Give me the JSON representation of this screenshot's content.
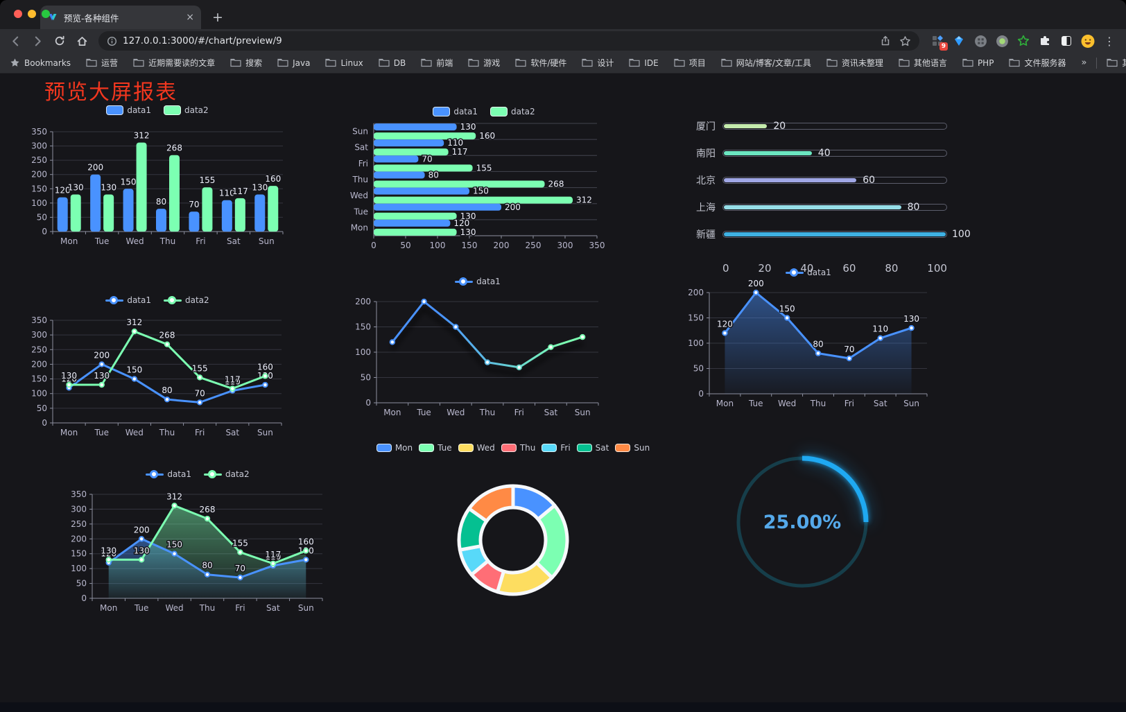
{
  "browser": {
    "tab_title": "预览-各种组件",
    "close_tab_glyph": "×",
    "new_tab_button": "+",
    "url": "127.0.0.1:3000/#/chart/preview/9",
    "extension_badge": "9",
    "menu_glyph": "⋮",
    "bookmarks_label": "Bookmarks",
    "bookmarks": [
      "运营",
      "近期需要读的文章",
      "搜索",
      "Java",
      "Linux",
      "DB",
      "前端",
      "游戏",
      "软件/硬件",
      "设计",
      "IDE",
      "项目",
      "网站/博客/文章/工具",
      "资讯未整理",
      "其他语言",
      "PHP",
      "文件服务器"
    ],
    "bookmarks_overflow": "»",
    "other_bookmarks": "其他书签"
  },
  "page": {
    "title": "预览大屏报表"
  },
  "theme": {
    "bg": "#16161a",
    "axis": "#8d90a0",
    "grid": "#34353f",
    "grid_strong": "#43444f",
    "tick_text": "#b9b8ce",
    "data_label": "#edeffa",
    "title_red": "#f2371f"
  },
  "chart_data": [
    {
      "id": "bar-vertical",
      "type": "bar",
      "legend_marker": "rect",
      "categories": [
        "Mon",
        "Tue",
        "Wed",
        "Thu",
        "Fri",
        "Sat",
        "Sun"
      ],
      "series": [
        {
          "name": "data1",
          "color": "#4992ff",
          "values": [
            120,
            200,
            150,
            80,
            70,
            110,
            130
          ]
        },
        {
          "name": "data2",
          "color": "#7cffb2",
          "values": [
            130,
            130,
            312,
            268,
            155,
            117,
            160
          ]
        }
      ],
      "ylim": [
        0,
        350
      ],
      "ytick_step": 50,
      "show_labels": true,
      "grid": true,
      "legend_position": "top"
    },
    {
      "id": "bar-horizontal",
      "type": "bar-horizontal",
      "legend_marker": "rect",
      "categories": [
        "Mon",
        "Tue",
        "Wed",
        "Thu",
        "Fri",
        "Sat",
        "Sun"
      ],
      "series": [
        {
          "name": "data1",
          "color": "#4992ff",
          "values": [
            120,
            200,
            150,
            80,
            70,
            110,
            130
          ]
        },
        {
          "name": "data2",
          "color": "#7cffb2",
          "values": [
            130,
            130,
            312,
            268,
            155,
            117,
            160
          ]
        }
      ],
      "xlim": [
        0,
        350
      ],
      "xtick_step": 50,
      "show_labels": true,
      "legend_position": "top"
    },
    {
      "id": "progress-bars",
      "type": "progress",
      "categories": [
        "厦门",
        "南阳",
        "北京",
        "上海",
        "新疆"
      ],
      "values": [
        20,
        40,
        60,
        80,
        100
      ],
      "colors": [
        "#c4ebad",
        "#6be6c1",
        "#a0a7e6",
        "#96dee8",
        "#3fb1e3"
      ],
      "xticks": [
        0,
        20,
        40,
        60,
        80,
        100
      ],
      "xlim": [
        0,
        100
      ]
    },
    {
      "id": "line-dual",
      "type": "line",
      "legend_marker": "line",
      "categories": [
        "Mon",
        "Tue",
        "Wed",
        "Thu",
        "Fri",
        "Sat",
        "Sun"
      ],
      "series": [
        {
          "name": "data1",
          "color": "#4992ff",
          "values": [
            120,
            200,
            150,
            80,
            70,
            110,
            130
          ]
        },
        {
          "name": "data2",
          "color": "#7cffb2",
          "values": [
            130,
            130,
            312,
            268,
            155,
            117,
            160
          ]
        }
      ],
      "ylim": [
        0,
        350
      ],
      "ytick_step": 50,
      "show_labels": true,
      "legend_position": "top"
    },
    {
      "id": "line-gradient",
      "type": "line",
      "legend_marker": "line",
      "categories": [
        "Mon",
        "Tue",
        "Wed",
        "Thu",
        "Fri",
        "Sat",
        "Sun"
      ],
      "series": [
        {
          "name": "data1",
          "color": "#4992ff",
          "color_end": "#7cffb2",
          "values": [
            120,
            200,
            150,
            80,
            70,
            110,
            130
          ]
        }
      ],
      "ylim": [
        0,
        200
      ],
      "ytick_step": 50,
      "show_labels": false,
      "gradient_stroke": true,
      "shadow": true,
      "legend_position": "top"
    },
    {
      "id": "line-area",
      "type": "line",
      "legend_marker": "line",
      "categories": [
        "Mon",
        "Tue",
        "Wed",
        "Thu",
        "Fri",
        "Sat",
        "Sun"
      ],
      "series": [
        {
          "name": "data1",
          "color": "#4992ff",
          "values": [
            120,
            200,
            150,
            80,
            70,
            110,
            130
          ],
          "area": true
        }
      ],
      "ylim": [
        0,
        200
      ],
      "ytick_step": 50,
      "show_labels": true,
      "legend_position": "top"
    },
    {
      "id": "area-dual",
      "type": "line",
      "legend_marker": "line",
      "categories": [
        "Mon",
        "Tue",
        "Wed",
        "Thu",
        "Fri",
        "Sat",
        "Sun"
      ],
      "series": [
        {
          "name": "data1",
          "color": "#4992ff",
          "values": [
            120,
            200,
            150,
            80,
            70,
            110,
            130
          ],
          "area": true
        },
        {
          "name": "data2",
          "color": "#7cffb2",
          "values": [
            130,
            130,
            312,
            268,
            155,
            117,
            160
          ],
          "area": true
        }
      ],
      "ylim": [
        0,
        350
      ],
      "ytick_step": 50,
      "show_labels": true,
      "legend_position": "top"
    },
    {
      "id": "donut",
      "type": "pie",
      "legend_marker": "rect",
      "categories": [
        "Mon",
        "Tue",
        "Wed",
        "Thu",
        "Fri",
        "Sat",
        "Sun"
      ],
      "values": [
        120,
        200,
        150,
        80,
        70,
        110,
        130
      ],
      "colors": [
        "#4992ff",
        "#7cffb2",
        "#fddd60",
        "#ff6e76",
        "#58d9f9",
        "#05c091",
        "#ff8a45"
      ],
      "legend_position": "top"
    },
    {
      "id": "gauge",
      "type": "gauge",
      "value": 25,
      "max": 100,
      "label": "25.00%",
      "color": "#1fa9f2",
      "track_color": "#163e4a",
      "text_color": "#55a9ea"
    }
  ]
}
